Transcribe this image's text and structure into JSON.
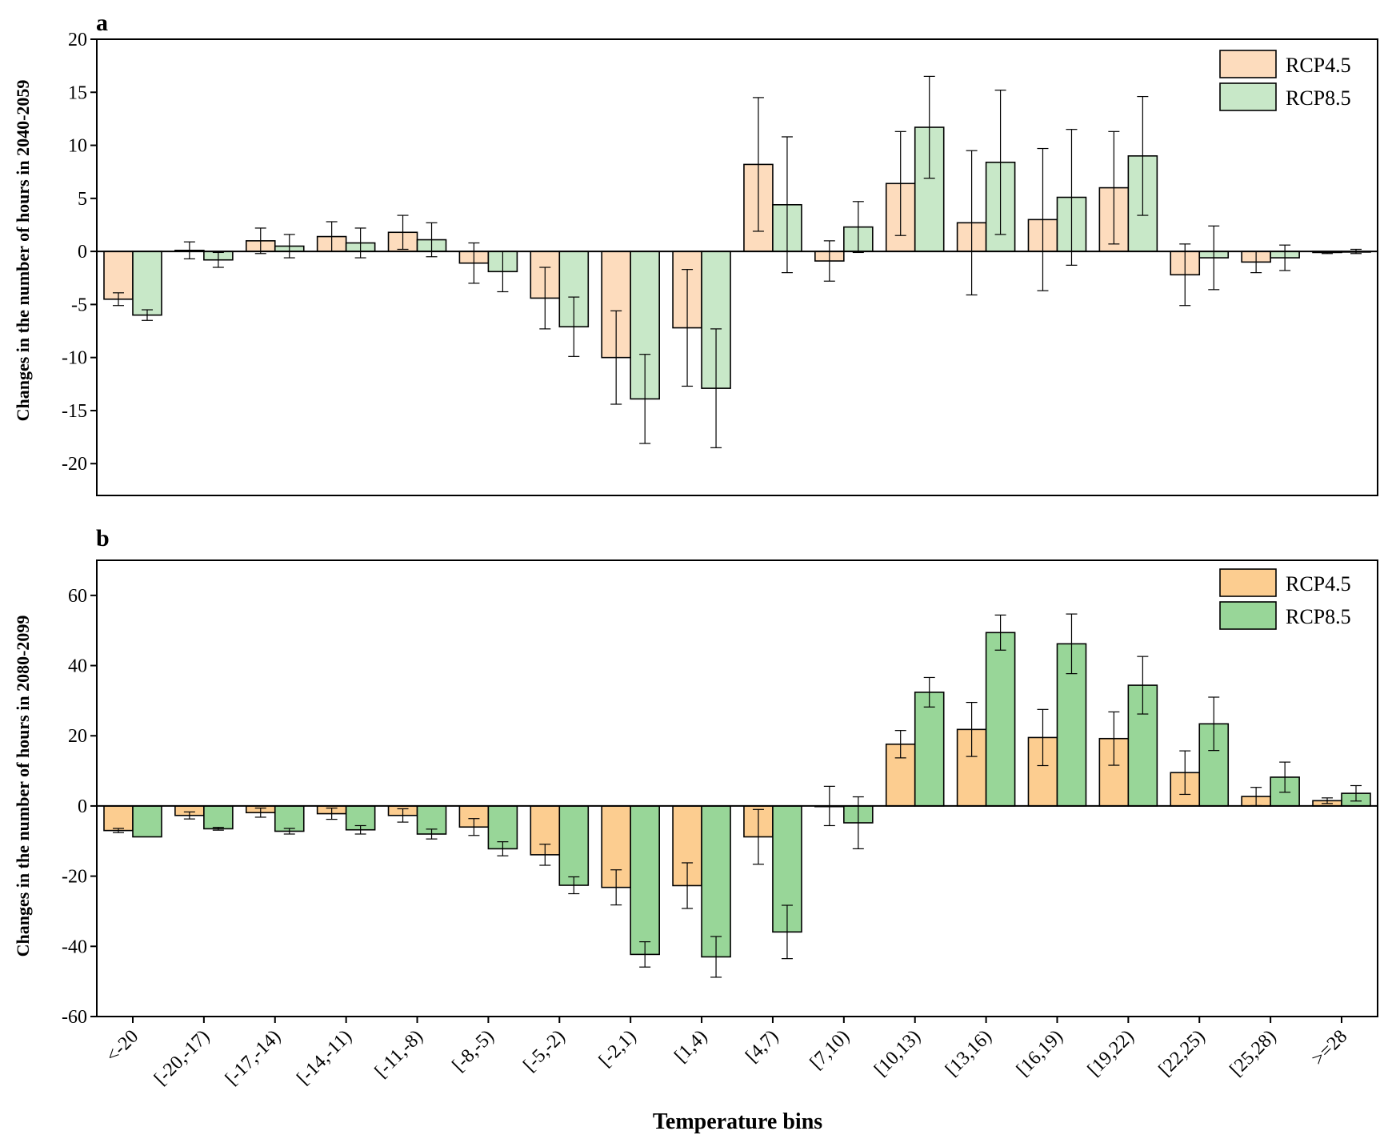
{
  "chart_data": [
    {
      "type": "bar",
      "panel": "a",
      "ylabel": "Changes in the number of hours in 2040-2059",
      "xlabel": "",
      "ylim": [
        -23,
        20
      ],
      "yticks": [
        20,
        15,
        10,
        5,
        0,
        -5,
        -10,
        -15,
        -20
      ],
      "legend_position": "top-right",
      "categories": [
        "<-20",
        "[-20,-17)",
        "[-17,-14)",
        "[-14,-11)",
        "[-11,-8)",
        "[-8,-5)",
        "[-5,-2)",
        "[-2,1)",
        "[1,4)",
        "[4,7)",
        "[7,10)",
        "[10,13)",
        "[13,16)",
        "[16,19)",
        "[19,22)",
        "[22,25)",
        "[25,28)",
        ">=28"
      ],
      "series": [
        {
          "name": "RCP4.5",
          "color": "#fddcbd",
          "values": [
            -4.5,
            0.1,
            1.0,
            1.4,
            1.8,
            -1.1,
            -4.4,
            -10.0,
            -7.2,
            8.2,
            -0.9,
            6.4,
            2.7,
            3.0,
            6.0,
            -2.2,
            -1.0,
            -0.1
          ],
          "errors": [
            0.6,
            0.8,
            1.2,
            1.4,
            1.6,
            1.9,
            2.9,
            4.4,
            5.5,
            6.3,
            1.9,
            4.9,
            6.8,
            6.7,
            5.3,
            2.9,
            1.0,
            0.1
          ]
        },
        {
          "name": "RCP8.5",
          "color": "#c8e8c8",
          "values": [
            -6.0,
            -0.8,
            0.5,
            0.8,
            1.1,
            -1.9,
            -7.1,
            -13.9,
            -12.9,
            4.4,
            2.3,
            11.7,
            8.4,
            5.1,
            9.0,
            -0.6,
            -0.6,
            0.0
          ],
          "errors": [
            0.5,
            0.7,
            1.1,
            1.4,
            1.6,
            1.9,
            2.8,
            4.2,
            5.6,
            6.4,
            2.4,
            4.8,
            6.8,
            6.4,
            5.6,
            3.0,
            1.2,
            0.2
          ]
        }
      ]
    },
    {
      "type": "bar",
      "panel": "b",
      "ylabel": "Changes in the number of hours in 2080-2099",
      "xlabel": "Temperature bins",
      "ylim": [
        -60,
        70
      ],
      "yticks": [
        60,
        40,
        20,
        0,
        -20,
        -40,
        -60
      ],
      "legend_position": "top-right",
      "categories": [
        "<-20",
        "[-20,-17)",
        "[-17,-14)",
        "[-14,-11)",
        "[-11,-8)",
        "[-8,-5)",
        "[-5,-2)",
        "[-2,1)",
        "[1,4)",
        "[4,7)",
        "[7,10)",
        "[10,13)",
        "[13,16)",
        "[16,19)",
        "[19,22)",
        "[22,25)",
        "[25,28)",
        ">=28"
      ],
      "series": [
        {
          "name": "RCP4.5",
          "color": "#fccd90",
          "values": [
            -7.0,
            -2.7,
            -1.9,
            -2.2,
            -2.7,
            -6.0,
            -13.9,
            -23.2,
            -22.7,
            -8.8,
            0.0,
            17.6,
            21.8,
            19.5,
            19.2,
            9.5,
            2.7,
            1.5
          ],
          "errors": [
            0.6,
            1.0,
            1.3,
            1.6,
            1.9,
            2.4,
            3.0,
            5.0,
            6.5,
            7.8,
            5.6,
            3.9,
            7.7,
            8.0,
            7.6,
            6.2,
            2.6,
            0.8
          ]
        },
        {
          "name": "RCP8.5",
          "color": "#98d698",
          "values": [
            -8.8,
            -6.5,
            -7.2,
            -6.8,
            -8.0,
            -12.2,
            -22.6,
            -42.3,
            -43.0,
            -35.9,
            -4.8,
            32.4,
            49.4,
            46.2,
            34.4,
            23.4,
            8.2,
            3.6
          ],
          "errors": [
            0.0,
            0.4,
            0.8,
            1.2,
            1.4,
            2.0,
            2.4,
            3.6,
            5.8,
            7.6,
            7.4,
            4.2,
            5.0,
            8.5,
            8.2,
            7.6,
            4.3,
            2.2
          ]
        }
      ]
    }
  ],
  "panels": [
    {
      "letter": "a"
    },
    {
      "letter": "b"
    }
  ]
}
